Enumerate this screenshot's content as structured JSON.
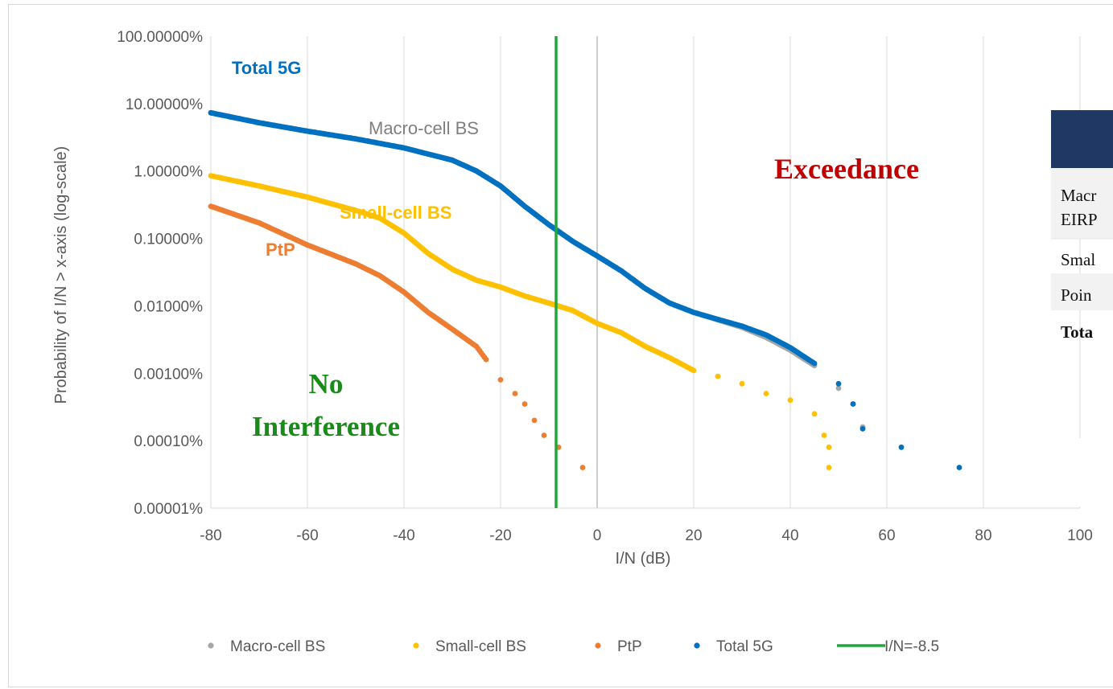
{
  "chart_data": {
    "type": "scatter",
    "xlabel": "I/N (dB)",
    "ylabel": "Probability of I/N > x-axis (log-scale)",
    "x_ticks": [
      "-80",
      "-60",
      "-40",
      "-20",
      "0",
      "20",
      "40",
      "60",
      "80",
      "100"
    ],
    "y_ticks": [
      "100.00000%",
      "10.00000%",
      "1.00000%",
      "0.10000%",
      "0.01000%",
      "0.00100%",
      "0.00010%",
      "0.00001%"
    ],
    "xlim": [
      -80,
      100
    ],
    "ylim_percent": [
      1e-05,
      100
    ],
    "yscale": "log",
    "grid": "vertical",
    "legend_position": "bottom",
    "threshold_line": {
      "label": "I/N=-8.5",
      "x": -8.5,
      "color": "#22a83a"
    },
    "series": [
      {
        "name": "Macro-cell BS",
        "color": "#a6a6a6",
        "points": [
          [
            -80,
            7.3
          ],
          [
            -70,
            5.2
          ],
          [
            -60,
            3.9
          ],
          [
            -50,
            3.0
          ],
          [
            -40,
            2.2
          ],
          [
            -30,
            1.45
          ],
          [
            -25,
            1.0
          ],
          [
            -20,
            0.6
          ],
          [
            -15,
            0.3
          ],
          [
            -10,
            0.16
          ],
          [
            -5,
            0.09
          ],
          [
            0,
            0.055
          ],
          [
            5,
            0.033
          ],
          [
            10,
            0.018
          ],
          [
            15,
            0.011
          ],
          [
            20,
            0.008
          ],
          [
            25,
            0.0062
          ],
          [
            30,
            0.0048
          ],
          [
            35,
            0.0034
          ],
          [
            40,
            0.0022
          ],
          [
            45,
            0.0013
          ],
          [
            50,
            0.0006
          ],
          [
            53,
            0.00035
          ],
          [
            55,
            0.00016
          ]
        ]
      },
      {
        "name": "Small-cell BS",
        "color": "#ffc000",
        "points": [
          [
            -80,
            0.85
          ],
          [
            -70,
            0.6
          ],
          [
            -60,
            0.41
          ],
          [
            -50,
            0.26
          ],
          [
            -45,
            0.2
          ],
          [
            -40,
            0.12
          ],
          [
            -35,
            0.06
          ],
          [
            -30,
            0.035
          ],
          [
            -25,
            0.024
          ],
          [
            -20,
            0.019
          ],
          [
            -15,
            0.014
          ],
          [
            -10,
            0.011
          ],
          [
            -5,
            0.0085
          ],
          [
            0,
            0.0055
          ],
          [
            5,
            0.004
          ],
          [
            10,
            0.0025
          ],
          [
            15,
            0.0017
          ],
          [
            20,
            0.0011
          ],
          [
            25,
            0.0009
          ],
          [
            30,
            0.0007
          ],
          [
            35,
            0.0005
          ],
          [
            40,
            0.0004
          ],
          [
            45,
            0.00025
          ],
          [
            47,
            0.00012
          ],
          [
            48,
            8e-05
          ],
          [
            48,
            4e-05
          ]
        ]
      },
      {
        "name": "PtP",
        "color": "#ed7d31",
        "points": [
          [
            -80,
            0.3
          ],
          [
            -70,
            0.17
          ],
          [
            -60,
            0.08
          ],
          [
            -50,
            0.042
          ],
          [
            -45,
            0.028
          ],
          [
            -40,
            0.016
          ],
          [
            -35,
            0.008
          ],
          [
            -30,
            0.0045
          ],
          [
            -25,
            0.0025
          ],
          [
            -23,
            0.0016
          ],
          [
            -20,
            0.0008
          ],
          [
            -17,
            0.0005
          ],
          [
            -15,
            0.00035
          ],
          [
            -13,
            0.0002
          ],
          [
            -11,
            0.00012
          ],
          [
            -8,
            8e-05
          ],
          [
            -3,
            4e-05
          ]
        ]
      },
      {
        "name": "Total 5G",
        "color": "#0070c0",
        "points": [
          [
            -80,
            7.3
          ],
          [
            -70,
            5.2
          ],
          [
            -60,
            3.9
          ],
          [
            -50,
            3.0
          ],
          [
            -40,
            2.2
          ],
          [
            -30,
            1.45
          ],
          [
            -25,
            1.0
          ],
          [
            -20,
            0.6
          ],
          [
            -15,
            0.3
          ],
          [
            -10,
            0.16
          ],
          [
            -5,
            0.09
          ],
          [
            0,
            0.055
          ],
          [
            5,
            0.033
          ],
          [
            10,
            0.018
          ],
          [
            15,
            0.011
          ],
          [
            20,
            0.008
          ],
          [
            25,
            0.0063
          ],
          [
            30,
            0.005
          ],
          [
            35,
            0.0037
          ],
          [
            40,
            0.0024
          ],
          [
            45,
            0.0014
          ],
          [
            50,
            0.0007
          ],
          [
            53,
            0.00035
          ],
          [
            55,
            0.00015
          ],
          [
            63,
            8e-05
          ],
          [
            75,
            4e-05
          ]
        ]
      }
    ],
    "annotations": [
      {
        "text": "Total 5G",
        "color": "#0070c0"
      },
      {
        "text": "Macro-cell BS",
        "color": "#7f7f7f"
      },
      {
        "text": "Small-cell BS",
        "color": "#ffc000"
      },
      {
        "text": "PtP",
        "color": "#ed7d31"
      },
      {
        "text": "Exceedance",
        "color": "#c00000"
      },
      {
        "text": "No",
        "color": "#1a8a1a"
      },
      {
        "text": "Interference",
        "color": "#1a8a1a"
      }
    ]
  },
  "table": {
    "header_color": "#1f3864",
    "rows": [
      "Macr",
      "EIRP",
      "Smal",
      "Poin",
      "Tota"
    ]
  },
  "legend": [
    {
      "label": "Macro-cell BS",
      "color": "#a6a6a6",
      "marker": "dot"
    },
    {
      "label": "Small-cell BS",
      "color": "#ffc000",
      "marker": "dot"
    },
    {
      "label": "PtP",
      "color": "#ed7d31",
      "marker": "dot"
    },
    {
      "label": "Total 5G",
      "color": "#0070c0",
      "marker": "dot"
    },
    {
      "label": "I/N=-8.5",
      "color": "#22a83a",
      "marker": "line"
    }
  ]
}
